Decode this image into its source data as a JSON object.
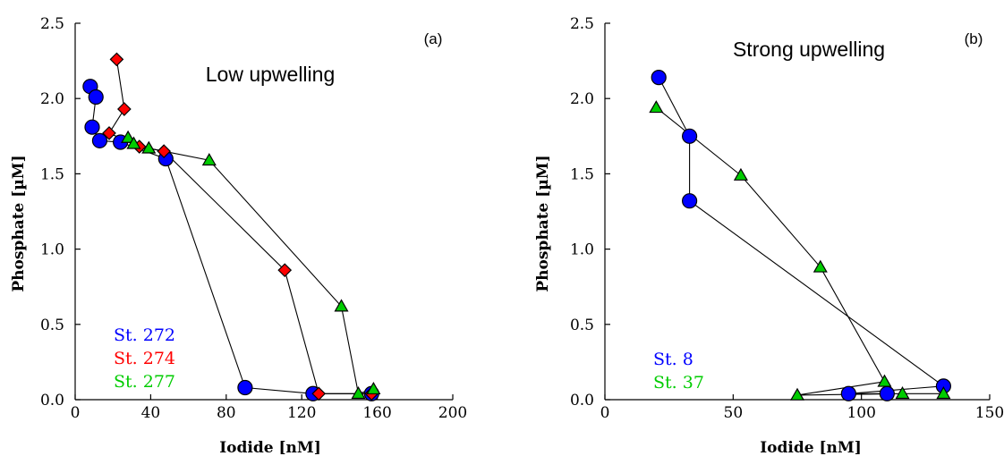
{
  "chart_data": [
    {
      "type": "line",
      "panel_label": "(a)",
      "annotation": "Low upwelling",
      "xlabel": "Iodide [nM]",
      "ylabel": "Phosphate [µM]",
      "xlim": [
        0,
        200
      ],
      "ylim": [
        0,
        2.5
      ],
      "xticks": [
        0,
        40,
        80,
        120,
        160,
        200
      ],
      "xtick_labels": [
        "0",
        "40",
        "80",
        "120",
        "160",
        "200"
      ],
      "yticks": [
        0,
        0.5,
        1.0,
        1.5,
        2.0,
        2.5
      ],
      "ytick_labels": [
        "0.0",
        "0.5",
        "1.0",
        "1.5",
        "2.0",
        "2.5"
      ],
      "legend_position": "bottom-left",
      "series": [
        {
          "name": "St. 272",
          "color": "#0000ff",
          "marker": "circle",
          "points": [
            [
              8,
              2.08
            ],
            [
              11,
              2.01
            ],
            [
              9,
              1.81
            ],
            [
              13,
              1.72
            ],
            [
              24,
              1.71
            ],
            [
              48,
              1.6
            ],
            [
              90,
              0.08
            ],
            [
              126,
              0.04
            ],
            [
              157,
              0.04
            ]
          ]
        },
        {
          "name": "St. 274",
          "color": "#ff0000",
          "marker": "diamond",
          "points": [
            [
              22,
              2.26
            ],
            [
              26,
              1.93
            ],
            [
              18,
              1.77
            ],
            [
              34,
              1.68
            ],
            [
              47,
              1.65
            ],
            [
              111,
              0.86
            ],
            [
              129,
              0.04
            ],
            [
              157,
              0.04
            ]
          ]
        },
        {
          "name": "St. 277",
          "color": "#00cc00",
          "marker": "triangle",
          "points": [
            [
              28,
              1.74
            ],
            [
              31,
              1.7
            ],
            [
              39,
              1.67
            ],
            [
              71,
              1.59
            ],
            [
              141,
              0.62
            ],
            [
              150,
              0.04
            ],
            [
              158,
              0.07
            ]
          ]
        }
      ]
    },
    {
      "type": "line",
      "panel_label": "(b)",
      "annotation": "Strong upwelling",
      "xlabel": "Iodide [nM]",
      "ylabel": "Phosphate [µM]",
      "xlim": [
        0,
        150
      ],
      "ylim": [
        0,
        2.5
      ],
      "xticks": [
        0,
        50,
        100,
        150
      ],
      "xtick_labels": [
        "0",
        "50",
        "100",
        "150"
      ],
      "yticks": [
        0,
        0.5,
        1.0,
        1.5,
        2.0,
        2.5
      ],
      "ytick_labels": [
        "0.0",
        "0.5",
        "1.0",
        "1.5",
        "2.0",
        "2.5"
      ],
      "legend_position": "bottom-left",
      "series": [
        {
          "name": "St. 8",
          "color": "#0000ff",
          "marker": "circle",
          "points": [
            [
              21,
              2.14
            ],
            [
              33,
              1.75
            ],
            [
              33,
              1.32
            ],
            [
              132,
              0.09
            ],
            [
              95,
              0.04
            ],
            [
              110,
              0.04
            ]
          ]
        },
        {
          "name": "St. 37",
          "color": "#00cc00",
          "marker": "triangle",
          "points": [
            [
              20,
              1.94
            ],
            [
              53,
              1.49
            ],
            [
              84,
              0.88
            ],
            [
              109,
              0.12
            ],
            [
              75,
              0.03
            ],
            [
              116,
              0.04
            ],
            [
              132,
              0.04
            ]
          ]
        }
      ]
    }
  ]
}
